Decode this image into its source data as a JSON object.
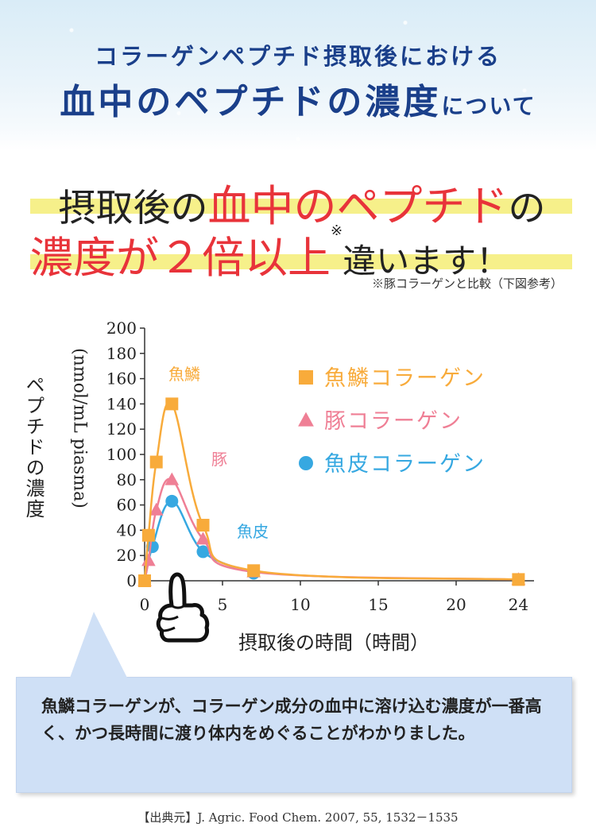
{
  "header": {
    "line1": "コラーゲンペプチド摂取後における",
    "line2_big": "血中のペプチドの濃度",
    "line2_small": "について"
  },
  "headline": {
    "part1_black": "摂取後の",
    "part1_red": "血中のペプチド",
    "part1_end": "の",
    "part2_red": "濃度が２倍以上",
    "part2_sup": "※",
    "part2_black": "違います！"
  },
  "footnote": "※豚コラーゲンと比較（下図参考）",
  "chart_data": {
    "type": "line",
    "xlabel": "摂取後の時間（時間）",
    "ylabel_jp": "ペプチドの濃度",
    "ylabel_unit": "(nmol/mL piasma)",
    "xlim": [
      0,
      25
    ],
    "ylim": [
      0,
      200
    ],
    "xticks": [
      "0",
      "5",
      "10",
      "15",
      "20",
      "24"
    ],
    "xtick_values": [
      0,
      5,
      10,
      15,
      20,
      24
    ],
    "yticks": [
      "0",
      "20",
      "40",
      "60",
      "80",
      "100",
      "120",
      "140",
      "160",
      "180",
      "200"
    ],
    "ytick_values": [
      0,
      20,
      40,
      60,
      80,
      100,
      120,
      140,
      160,
      180,
      200
    ],
    "series": [
      {
        "name": "魚鱗コラーゲン",
        "label": "魚鱗",
        "marker": "square",
        "color": "#f8ab3b",
        "x": [
          0,
          0.25,
          0.75,
          1.75,
          3.75,
          7,
          24
        ],
        "y": [
          0,
          36,
          94,
          140,
          44,
          8,
          1
        ]
      },
      {
        "name": "豚コラーゲン",
        "label": "豚",
        "marker": "triangle",
        "color": "#ef7f95",
        "x": [
          0,
          0.25,
          0.75,
          1.75,
          3.75,
          7,
          24
        ],
        "y": [
          0,
          16,
          56,
          80,
          33,
          7,
          1
        ]
      },
      {
        "name": "魚皮コラーゲン",
        "label": "魚皮",
        "marker": "circle",
        "color": "#36a8e1",
        "x": [
          0,
          0.5,
          1.75,
          3.75,
          7
        ],
        "y": [
          0,
          27,
          63,
          23,
          6
        ]
      }
    ],
    "legend_position": "upper-right",
    "grid": false
  },
  "bubble": {
    "text": "魚鱗コラーゲンが、コラーゲン成分の血中に溶け込む濃度が一番高く、かつ長時間に渡り体内をめぐることがわかりました。"
  },
  "source": "【出典元】J. Agric. Food Chem. 2007, 55, 1532－1535",
  "icons": {
    "pointer": "pointing-hand-icon"
  }
}
